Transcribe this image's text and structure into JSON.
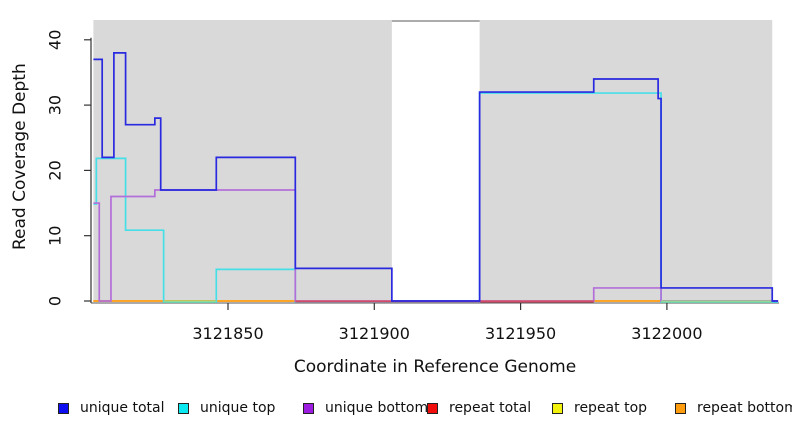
{
  "axes": {
    "x": {
      "label": "Coordinate in Reference Genome",
      "ticks": [
        3121850,
        3121900,
        3121950,
        3122000
      ]
    },
    "y": {
      "label": "Read Coverage Depth",
      "ticks": [
        0,
        10,
        20,
        30,
        40
      ],
      "range": [
        0,
        43
      ]
    }
  },
  "legend": {
    "items": [
      {
        "label": "unique total",
        "color": "#0d0df2"
      },
      {
        "label": "unique top",
        "color": "#0ae8f0"
      },
      {
        "label": "unique bottom",
        "color": "#9c1ce0"
      },
      {
        "label": "repeat total",
        "color": "#f20d0d"
      },
      {
        "label": "repeat top",
        "color": "#f2f20c"
      },
      {
        "label": "repeat bottom",
        "color": "#ff9d0f"
      }
    ]
  },
  "chart_data": {
    "type": "line",
    "subtype": "step-coverage",
    "title": "",
    "xlabel": "Coordinate in Reference Genome",
    "ylabel": "Read Coverage Depth",
    "x_range": [
      3121804,
      3122038
    ],
    "ylim": [
      0,
      43
    ],
    "grid": false,
    "legend_position": "bottom",
    "shade_color": "#d9d9d9",
    "shaded_regions": [
      {
        "from": 3121804,
        "to": 3121906
      },
      {
        "from": 3121936,
        "to": 3122036
      }
    ],
    "gap_top_border": {
      "from": 3121906,
      "to": 3121936,
      "color": "#909090"
    },
    "series_draw_order": [
      "repeat total",
      "repeat top",
      "repeat bottom",
      "unique top",
      "unique bottom"
    ],
    "top_series": "unique total",
    "series": [
      {
        "name": "repeat total",
        "color": "#e04444",
        "steps": [
          {
            "x": 3121804,
            "v": 0
          }
        ]
      },
      {
        "name": "repeat top",
        "color": "#f2f20c",
        "steps": [
          {
            "x": 3121804,
            "v": 0
          }
        ]
      },
      {
        "name": "repeat bottom",
        "color": "#ff9d26",
        "steps": [
          {
            "x": 3121804,
            "v": 0
          }
        ]
      },
      {
        "name": "unique top",
        "color": "#45dfe8",
        "steps": [
          {
            "x": 3121804,
            "v": 15
          },
          {
            "x": 3121805,
            "v": 22
          },
          {
            "x": 3121815,
            "v": 11
          },
          {
            "x": 3121828,
            "v": 0
          },
          {
            "x": 3121846,
            "v": 5
          },
          {
            "x": 3121873,
            "v": 0
          },
          {
            "x": 3121936,
            "v": 32
          },
          {
            "x": 3121998,
            "v": 0
          }
        ]
      },
      {
        "name": "unique bottom",
        "color": "#b36fd9",
        "steps": [
          {
            "x": 3121804,
            "v": 15
          },
          {
            "x": 3121806,
            "v": 0
          },
          {
            "x": 3121810,
            "v": 16
          },
          {
            "x": 3121825,
            "v": 17
          },
          {
            "x": 3121873,
            "v": 0
          },
          {
            "x": 3121975,
            "v": 2
          },
          {
            "x": 3121998,
            "v": 0
          }
        ]
      },
      {
        "name": "unique total",
        "color": "#2929e0",
        "steps": [
          {
            "x": 3121804,
            "v": 37
          },
          {
            "x": 3121807,
            "v": 22
          },
          {
            "x": 3121811,
            "v": 38
          },
          {
            "x": 3121815,
            "v": 27
          },
          {
            "x": 3121825,
            "v": 28
          },
          {
            "x": 3121827,
            "v": 17
          },
          {
            "x": 3121846,
            "v": 22
          },
          {
            "x": 3121873,
            "v": 5
          },
          {
            "x": 3121906,
            "v": 0
          },
          {
            "x": 3121936,
            "v": 32
          },
          {
            "x": 3121975,
            "v": 34
          },
          {
            "x": 3121997,
            "v": 31
          },
          {
            "x": 3121998,
            "v": 2
          },
          {
            "x": 3122036,
            "v": 0
          }
        ]
      }
    ],
    "baseline_overlap_segments": [
      {
        "from": 3121828,
        "to": 3121846,
        "color": "#8edc96"
      },
      {
        "from": 3121873,
        "to": 3121975,
        "color": "#d44a6a"
      },
      {
        "from": 3121998,
        "to": 3122036,
        "color": "#8edc96"
      }
    ]
  }
}
